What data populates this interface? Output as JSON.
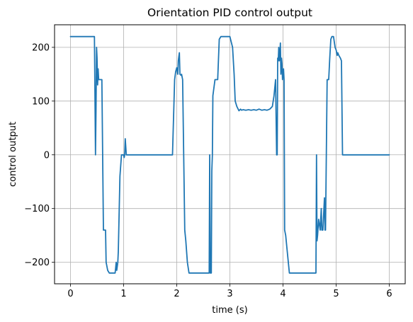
{
  "chart_data": {
    "type": "line",
    "title": "Orientation PID control output",
    "xlabel": "time (s)",
    "ylabel": "control output",
    "xlim": [
      -0.3,
      6.3
    ],
    "ylim": [
      -240,
      242
    ],
    "xticks": [
      0,
      1,
      2,
      3,
      4,
      5,
      6
    ],
    "xtick_labels": [
      "0",
      "1",
      "2",
      "3",
      "4",
      "5",
      "6"
    ],
    "yticks": [
      -200,
      -100,
      0,
      100,
      200
    ],
    "ytick_labels": [
      "−200",
      "−100",
      "0",
      "100",
      "200"
    ],
    "grid": true,
    "series": [
      {
        "color": "#1f77b4",
        "x": [
          0,
          0.45,
          0.47,
          0.48,
          0.49,
          0.5,
          0.51,
          0.52,
          0.53,
          0.54,
          0.56,
          0.59,
          0.62,
          0.63,
          0.66,
          0.67,
          0.7,
          0.73,
          0.78,
          0.84,
          0.85,
          0.86,
          0.87,
          0.89,
          0.9,
          0.93,
          0.96,
          0.97,
          1.0,
          1.01,
          1.02,
          1.03,
          1.05,
          1.08,
          1.1,
          1.15,
          1.2,
          1.5,
          1.8,
          1.92,
          1.96,
          1.98,
          2.0,
          2.02,
          2.03,
          2.05,
          2.06,
          2.08,
          2.09,
          2.11,
          2.15,
          2.17,
          2.2,
          2.23,
          2.3,
          2.6,
          2.61,
          2.62,
          2.63,
          2.64,
          2.65,
          2.66,
          2.67,
          2.68,
          2.72,
          2.73,
          2.77,
          2.8,
          2.83,
          2.86,
          2.89,
          2.92,
          3.0,
          3.05,
          3.08,
          3.1,
          3.13,
          3.17,
          3.2,
          3.22,
          3.25,
          3.3,
          3.35,
          3.4,
          3.45,
          3.5,
          3.55,
          3.6,
          3.65,
          3.7,
          3.75,
          3.8,
          3.83,
          3.86,
          3.88,
          3.89,
          3.9,
          3.91,
          3.92,
          3.93,
          3.94,
          3.95,
          3.96,
          3.97,
          3.98,
          3.99,
          4.0,
          4.01,
          4.02,
          4.03,
          4.05,
          4.08,
          4.1,
          4.12,
          4.15,
          4.3,
          4.5,
          4.62,
          4.63,
          4.64,
          4.65,
          4.67,
          4.7,
          4.72,
          4.73,
          4.75,
          4.78,
          4.79,
          4.8,
          4.83,
          4.86,
          4.88,
          4.9,
          4.92,
          4.95,
          4.98,
          5.0,
          5.02,
          5.03,
          5.05,
          5.08,
          5.1,
          5.12,
          5.5,
          6.0
        ],
        "y": [
          220,
          220,
          0,
          80,
          200,
          180,
          130,
          160,
          140,
          140,
          140,
          140,
          -140,
          -140,
          -140,
          -200,
          -215,
          -220,
          -220,
          -220,
          -210,
          -200,
          -215,
          -200,
          -180,
          -40,
          0,
          0,
          0,
          -5,
          0,
          30,
          0,
          0,
          0,
          0,
          0,
          0,
          0,
          0,
          140,
          155,
          162,
          150,
          175,
          190,
          150,
          148,
          150,
          140,
          -140,
          -160,
          -200,
          -220,
          -220,
          -220,
          -220,
          0,
          -220,
          -220,
          -220,
          -30,
          0,
          110,
          140,
          140,
          140,
          215,
          220,
          220,
          220,
          220,
          220,
          200,
          150,
          100,
          90,
          82,
          85,
          83,
          84,
          83,
          84,
          83,
          84,
          83,
          85,
          83,
          84,
          83,
          85,
          90,
          110,
          140,
          0,
          0,
          180,
          175,
          200,
          175,
          185,
          208,
          150,
          180,
          170,
          140,
          150,
          160,
          140,
          -140,
          -150,
          -180,
          -200,
          -220,
          -220,
          -220,
          -220,
          -220,
          0,
          -160,
          -150,
          -120,
          -140,
          -100,
          -140,
          -140,
          -80,
          -140,
          -140,
          140,
          140,
          180,
          215,
          220,
          220,
          200,
          195,
          185,
          190,
          185,
          180,
          175,
          0,
          0,
          0
        ]
      }
    ]
  }
}
